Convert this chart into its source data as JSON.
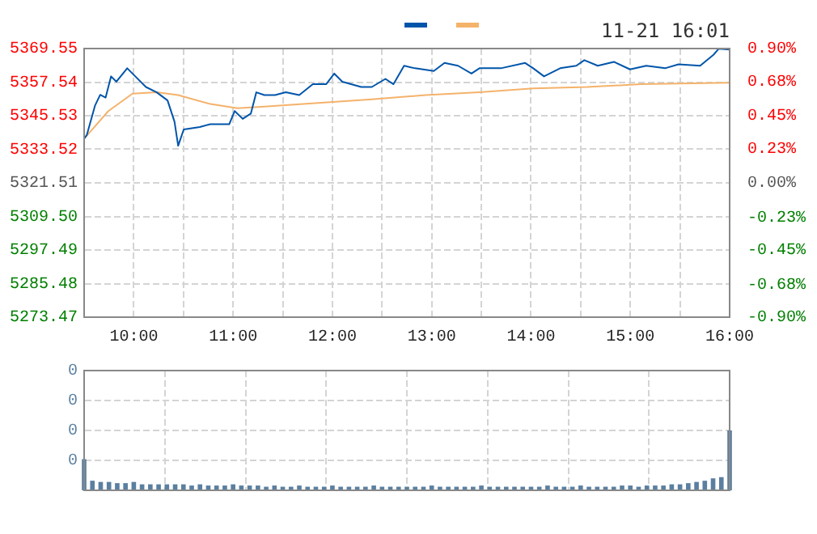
{
  "chart_data": [
    {
      "type": "line",
      "annotations": [
        "11-21 16:01"
      ],
      "grid": true,
      "xlim": [
        9.5,
        16
      ],
      "xticks": [
        {
          "value": 9.5,
          "label": null
        },
        {
          "value": 10,
          "label": "10:00"
        },
        {
          "value": 10.5,
          "label": null
        },
        {
          "value": 11,
          "label": "11:00"
        },
        {
          "value": 11.5,
          "label": null
        },
        {
          "value": 12,
          "label": "12:00"
        },
        {
          "value": 12.5,
          "label": null
        },
        {
          "value": 13,
          "label": "13:00"
        },
        {
          "value": 13.5,
          "label": null
        },
        {
          "value": 14,
          "label": "14:00"
        },
        {
          "value": 14.5,
          "label": null
        },
        {
          "value": 15,
          "label": "15:00"
        },
        {
          "value": 15.5,
          "label": null
        },
        {
          "value": 16,
          "label": "16:00"
        }
      ],
      "ylim": [
        5273.47,
        5369.55
      ],
      "yticks": [
        5273.47,
        5285.48,
        5297.49,
        {
          "value": 5309.5,
          "label": "5309.50"
        },
        5321.51,
        5333.52,
        5345.53,
        5357.54,
        5369.55
      ],
      "y2lim": [
        -0.9,
        0.9
      ],
      "y2ticks": [
        {
          "value": -0.9,
          "label": "-0.90%"
        },
        {
          "value": -0.68,
          "label": "-0.68%"
        },
        {
          "value": -0.45,
          "label": "-0.45%"
        },
        {
          "value": -0.23,
          "label": "-0.23%"
        },
        {
          "value": 0,
          "label": "0.00%"
        },
        {
          "value": 0.23,
          "label": "0.23%"
        },
        {
          "value": 0.45,
          "label": "0.45%"
        },
        {
          "value": 0.68,
          "label": "0.68%"
        },
        {
          "value": 0.9,
          "label": "0.90%"
        }
      ],
      "series": [
        {
          "color": "#0055aa",
          "x": [
            9.5,
            9.528,
            9.609,
            9.662,
            9.716,
            9.771,
            9.825,
            9.934,
            10.015,
            10.122,
            10.231,
            10.34,
            10.41,
            10.447,
            10.503,
            10.665,
            10.772,
            10.962,
            11.016,
            11.097,
            11.179,
            11.234,
            11.315,
            11.422,
            11.531,
            11.666,
            11.803,
            11.937,
            12.019,
            12.1,
            12.29,
            12.397,
            12.534,
            12.615,
            12.722,
            12.831,
            13.021,
            13.129,
            13.265,
            13.4,
            13.481,
            13.697,
            13.941,
            14.022,
            14.131,
            14.294,
            14.456,
            14.537,
            14.672,
            14.835,
            14.997,
            15.16,
            15.35,
            15.485,
            15.703,
            15.837,
            15.891,
            16
          ],
          "values": [
            5337.3,
            5338.7,
            5349.1,
            5353,
            5352,
            5359.6,
            5357.7,
            5362.5,
            5359.6,
            5355.8,
            5353.9,
            5351,
            5343.4,
            5334.8,
            5340.6,
            5341.5,
            5342.5,
            5342.5,
            5347.2,
            5344.4,
            5346.3,
            5353.9,
            5352.9,
            5352.9,
            5353.9,
            5352.9,
            5356.8,
            5356.8,
            5360.6,
            5357.7,
            5355.8,
            5355.8,
            5358.7,
            5356.8,
            5363.4,
            5362.5,
            5361.5,
            5364.4,
            5363.4,
            5360.6,
            5362.5,
            5362.5,
            5364.4,
            5362.5,
            5359.6,
            5362.5,
            5363.4,
            5365.4,
            5363.4,
            5364.8,
            5362.1,
            5363.4,
            5362.5,
            5363.9,
            5363.4,
            5367.3,
            5369.5,
            5369.2
          ]
        },
        {
          "color": "#f4b26b",
          "x": [
            9.5,
            9.744,
            9.987,
            10.231,
            10.447,
            10.772,
            11.044,
            11.315,
            11.856,
            12.397,
            12.94,
            13.481,
            14.022,
            14.565,
            15.106,
            16
          ],
          "values": [
            5337.3,
            5347.2,
            5353.4,
            5353.9,
            5352.9,
            5349.7,
            5348.2,
            5348.8,
            5350.1,
            5351.4,
            5352.9,
            5353.9,
            5355.3,
            5355.8,
            5356.8,
            5357.3
          ]
        }
      ]
    },
    {
      "type": "bar",
      "grid": true,
      "tick_labels": "y",
      "xlim": [
        9.5,
        16
      ],
      "xticks": [
        {
          "value": 9.5,
          "label": null
        },
        {
          "value": 10.3125,
          "label": null
        },
        {
          "value": 11.125,
          "label": null
        },
        {
          "value": 11.9375,
          "label": null
        },
        {
          "value": 12.75,
          "label": null
        },
        {
          "value": 13.5625,
          "label": null
        },
        {
          "value": 14.375,
          "label": null
        },
        {
          "value": 15.1875,
          "label": null
        },
        {
          "value": 16,
          "label": null
        }
      ],
      "ylim": [
        0,
        0.4
      ],
      "yticks": [
        {
          "value": 0.1,
          "label": "0"
        },
        {
          "value": 0.2,
          "label": "0"
        },
        {
          "value": 0.3,
          "label": "0"
        },
        {
          "value": 0.4,
          "label": "0"
        }
      ],
      "series": [
        {
          "color": "#5a7fa0",
          "x": [
            9.5,
            9.5833,
            9.6667,
            9.75,
            9.8333,
            9.9167,
            10,
            10.0833,
            10.1667,
            10.25,
            10.3333,
            10.4167,
            10.5,
            10.5833,
            10.6667,
            10.75,
            10.8333,
            10.9167,
            11,
            11.0833,
            11.1667,
            11.25,
            11.3333,
            11.4167,
            11.5,
            11.5833,
            11.6667,
            11.75,
            11.8333,
            11.9167,
            12,
            12.0833,
            12.1667,
            12.25,
            12.3333,
            12.4167,
            12.5,
            12.5833,
            12.6667,
            12.75,
            12.8333,
            12.9167,
            13,
            13.0833,
            13.1667,
            13.25,
            13.3333,
            13.4167,
            13.5,
            13.5833,
            13.6667,
            13.75,
            13.8333,
            13.9167,
            14,
            14.0833,
            14.1667,
            14.25,
            14.3333,
            14.4167,
            14.5,
            14.5833,
            14.6667,
            14.75,
            14.8333,
            14.9167,
            15,
            15.0833,
            15.1667,
            15.25,
            15.3333,
            15.4167,
            15.5,
            15.5833,
            15.6667,
            15.75,
            15.8333,
            15.9167,
            16
          ],
          "values": [
            0.104,
            0.032,
            0.028,
            0.028,
            0.024,
            0.024,
            0.028,
            0.02,
            0.02,
            0.02,
            0.02,
            0.02,
            0.02,
            0.016,
            0.02,
            0.016,
            0.016,
            0.016,
            0.02,
            0.016,
            0.016,
            0.016,
            0.012,
            0.016,
            0.012,
            0.012,
            0.016,
            0.012,
            0.012,
            0.012,
            0.016,
            0.012,
            0.012,
            0.012,
            0.012,
            0.016,
            0.012,
            0.012,
            0.012,
            0.012,
            0.012,
            0.012,
            0.016,
            0.012,
            0.012,
            0.012,
            0.012,
            0.012,
            0.016,
            0.012,
            0.012,
            0.012,
            0.012,
            0.012,
            0.012,
            0.012,
            0.016,
            0.012,
            0.012,
            0.012,
            0.016,
            0.012,
            0.012,
            0.012,
            0.012,
            0.016,
            0.016,
            0.012,
            0.016,
            0.016,
            0.016,
            0.02,
            0.02,
            0.024,
            0.028,
            0.032,
            0.04,
            0.044,
            0.2
          ]
        }
      ]
    }
  ]
}
